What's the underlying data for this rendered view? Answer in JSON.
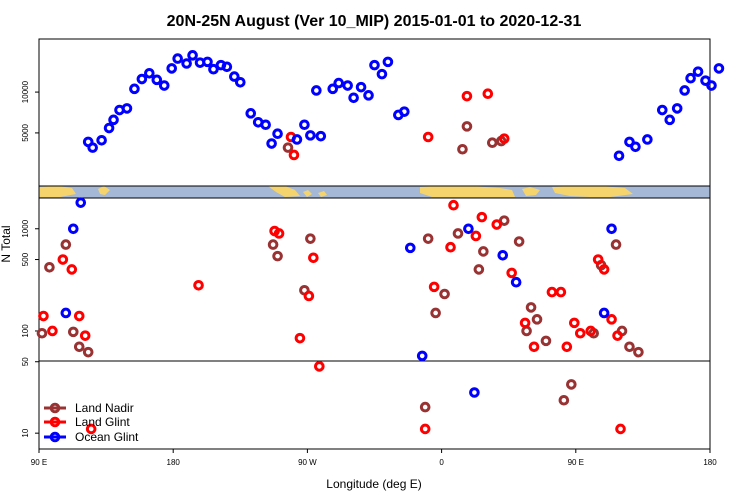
{
  "chart_data": {
    "type": "scatter",
    "title": "20N-25N August (Ver 10_MIP)   2015-01-01 to 2020-12-31",
    "xlabel": "Longitude (deg E)",
    "ylabel": "N Total",
    "x_ticks": [
      {
        "value": 90,
        "label": "90 E"
      },
      {
        "value": 180,
        "label": "180"
      },
      {
        "value": 270,
        "label": "90 W"
      },
      {
        "value": 360,
        "label": "0"
      },
      {
        "value": 450,
        "label": "90 E"
      },
      {
        "value": 540,
        "label": "180"
      }
    ],
    "xlim": [
      90,
      540
    ],
    "lower_panel": {
      "scale": "log",
      "ylim": [
        7,
        2000
      ],
      "y_ticks": [
        {
          "value": 10,
          "label": "10"
        },
        {
          "value": 50,
          "label": "50"
        },
        {
          "value": 100,
          "label": "100"
        },
        {
          "value": 500,
          "label": "500"
        },
        {
          "value": 1000,
          "label": "1000"
        }
      ],
      "reference_line": 50
    },
    "upper_panel": {
      "scale": "linear",
      "ylim": [
        -1500,
        16500
      ],
      "y_ticks": [
        {
          "value": 5000,
          "label": "5000"
        },
        {
          "value": 10000,
          "label": "10000"
        }
      ]
    },
    "legend": {
      "position": "bottom-left",
      "entries": [
        {
          "name": "Land Nadir",
          "color": "#993333"
        },
        {
          "name": "Land Glint",
          "color": "#ff0000"
        },
        {
          "name": "Ocean Glint",
          "color": "#0000ff"
        }
      ]
    },
    "series": [
      {
        "name": "Land Nadir",
        "color": "#993333",
        "points": [
          {
            "x": 92,
            "y": 95
          },
          {
            "x": 97,
            "y": 420
          },
          {
            "x": 108,
            "y": 700
          },
          {
            "x": 113,
            "y": 98
          },
          {
            "x": 117,
            "y": 70
          },
          {
            "x": 123,
            "y": 62
          },
          {
            "x": 247,
            "y": 700
          },
          {
            "x": 250,
            "y": 540
          },
          {
            "x": 257,
            "y": 3200
          },
          {
            "x": 268,
            "y": 250
          },
          {
            "x": 272,
            "y": 800
          },
          {
            "x": 349,
            "y": 18
          },
          {
            "x": 351,
            "y": 800
          },
          {
            "x": 356,
            "y": 150
          },
          {
            "x": 362,
            "y": 230
          },
          {
            "x": 371,
            "y": 900
          },
          {
            "x": 374,
            "y": 3000
          },
          {
            "x": 377,
            "y": 5800
          },
          {
            "x": 385,
            "y": 400
          },
          {
            "x": 388,
            "y": 600
          },
          {
            "x": 394,
            "y": 3800
          },
          {
            "x": 400,
            "y": 4000
          },
          {
            "x": 402,
            "y": 1200
          },
          {
            "x": 412,
            "y": 750
          },
          {
            "x": 417,
            "y": 100
          },
          {
            "x": 420,
            "y": 170
          },
          {
            "x": 424,
            "y": 130
          },
          {
            "x": 430,
            "y": 80
          },
          {
            "x": 442,
            "y": 21
          },
          {
            "x": 447,
            "y": 30
          },
          {
            "x": 462,
            "y": 95
          },
          {
            "x": 467,
            "y": 440
          },
          {
            "x": 477,
            "y": 700
          },
          {
            "x": 481,
            "y": 100
          },
          {
            "x": 486,
            "y": 70
          },
          {
            "x": 492,
            "y": 62
          }
        ]
      },
      {
        "name": "Land Glint",
        "color": "#ff0000",
        "points": [
          {
            "x": 93,
            "y": 140
          },
          {
            "x": 99,
            "y": 100
          },
          {
            "x": 106,
            "y": 500
          },
          {
            "x": 112,
            "y": 400
          },
          {
            "x": 117,
            "y": 140
          },
          {
            "x": 121,
            "y": 90
          },
          {
            "x": 125,
            "y": 11
          },
          {
            "x": 197,
            "y": 280
          },
          {
            "x": 248,
            "y": 950
          },
          {
            "x": 251,
            "y": 900
          },
          {
            "x": 259,
            "y": 4500
          },
          {
            "x": 261,
            "y": 2300
          },
          {
            "x": 265,
            "y": 85
          },
          {
            "x": 271,
            "y": 220
          },
          {
            "x": 274,
            "y": 520
          },
          {
            "x": 278,
            "y": 45
          },
          {
            "x": 349,
            "y": 11
          },
          {
            "x": 351,
            "y": 4500
          },
          {
            "x": 355,
            "y": 270
          },
          {
            "x": 366,
            "y": 660
          },
          {
            "x": 368,
            "y": 1700
          },
          {
            "x": 377,
            "y": 9500
          },
          {
            "x": 383,
            "y": 850
          },
          {
            "x": 387,
            "y": 1300
          },
          {
            "x": 391,
            "y": 9800
          },
          {
            "x": 397,
            "y": 1100
          },
          {
            "x": 402,
            "y": 4300
          },
          {
            "x": 407,
            "y": 370
          },
          {
            "x": 416,
            "y": 120
          },
          {
            "x": 422,
            "y": 70
          },
          {
            "x": 434,
            "y": 240
          },
          {
            "x": 440,
            "y": 240
          },
          {
            "x": 444,
            "y": 70
          },
          {
            "x": 449,
            "y": 120
          },
          {
            "x": 453,
            "y": 95
          },
          {
            "x": 460,
            "y": 100
          },
          {
            "x": 465,
            "y": 500
          },
          {
            "x": 469,
            "y": 400
          },
          {
            "x": 474,
            "y": 130
          },
          {
            "x": 478,
            "y": 90
          },
          {
            "x": 480,
            "y": 11
          }
        ]
      },
      {
        "name": "Ocean Glint",
        "color": "#0000ff",
        "points": [
          {
            "x": 108,
            "y": 150
          },
          {
            "x": 113,
            "y": 1000
          },
          {
            "x": 118,
            "y": 1800
          },
          {
            "x": 123,
            "y": 3900
          },
          {
            "x": 126,
            "y": 3200
          },
          {
            "x": 132,
            "y": 4100
          },
          {
            "x": 137,
            "y": 5600
          },
          {
            "x": 140,
            "y": 6600
          },
          {
            "x": 144,
            "y": 7800
          },
          {
            "x": 149,
            "y": 8000
          },
          {
            "x": 154,
            "y": 10400
          },
          {
            "x": 159,
            "y": 11600
          },
          {
            "x": 164,
            "y": 12300
          },
          {
            "x": 169,
            "y": 11500
          },
          {
            "x": 174,
            "y": 10800
          },
          {
            "x": 179,
            "y": 12900
          },
          {
            "x": 183,
            "y": 14100
          },
          {
            "x": 189,
            "y": 13500
          },
          {
            "x": 193,
            "y": 14500
          },
          {
            "x": 198,
            "y": 13600
          },
          {
            "x": 203,
            "y": 13700
          },
          {
            "x": 207,
            "y": 12800
          },
          {
            "x": 212,
            "y": 13300
          },
          {
            "x": 216,
            "y": 13100
          },
          {
            "x": 221,
            "y": 11900
          },
          {
            "x": 225,
            "y": 11200
          },
          {
            "x": 232,
            "y": 7400
          },
          {
            "x": 237,
            "y": 6300
          },
          {
            "x": 242,
            "y": 6000
          },
          {
            "x": 246,
            "y": 3700
          },
          {
            "x": 250,
            "y": 4900
          },
          {
            "x": 263,
            "y": 4200
          },
          {
            "x": 268,
            "y": 6000
          },
          {
            "x": 272,
            "y": 4700
          },
          {
            "x": 276,
            "y": 10200
          },
          {
            "x": 279,
            "y": 4600
          },
          {
            "x": 287,
            "y": 10400
          },
          {
            "x": 291,
            "y": 11100
          },
          {
            "x": 297,
            "y": 10800
          },
          {
            "x": 301,
            "y": 9300
          },
          {
            "x": 306,
            "y": 10600
          },
          {
            "x": 311,
            "y": 9600
          },
          {
            "x": 315,
            "y": 13300
          },
          {
            "x": 320,
            "y": 12200
          },
          {
            "x": 324,
            "y": 13700
          },
          {
            "x": 331,
            "y": 7200
          },
          {
            "x": 335,
            "y": 7600
          },
          {
            "x": 339,
            "y": 650
          },
          {
            "x": 347,
            "y": 57
          },
          {
            "x": 378,
            "y": 1000
          },
          {
            "x": 382,
            "y": 25
          },
          {
            "x": 401,
            "y": 550
          },
          {
            "x": 410,
            "y": 300
          },
          {
            "x": 469,
            "y": 150
          },
          {
            "x": 474,
            "y": 1000
          },
          {
            "x": 479,
            "y": 2200
          },
          {
            "x": 486,
            "y": 3900
          },
          {
            "x": 490,
            "y": 3300
          },
          {
            "x": 498,
            "y": 4200
          },
          {
            "x": 508,
            "y": 7800
          },
          {
            "x": 513,
            "y": 6600
          },
          {
            "x": 518,
            "y": 8000
          },
          {
            "x": 523,
            "y": 10200
          },
          {
            "x": 527,
            "y": 11700
          },
          {
            "x": 532,
            "y": 12500
          },
          {
            "x": 537,
            "y": 11400
          },
          {
            "x": 541,
            "y": 10800
          },
          {
            "x": 546,
            "y": 12900
          }
        ]
      }
    ]
  }
}
